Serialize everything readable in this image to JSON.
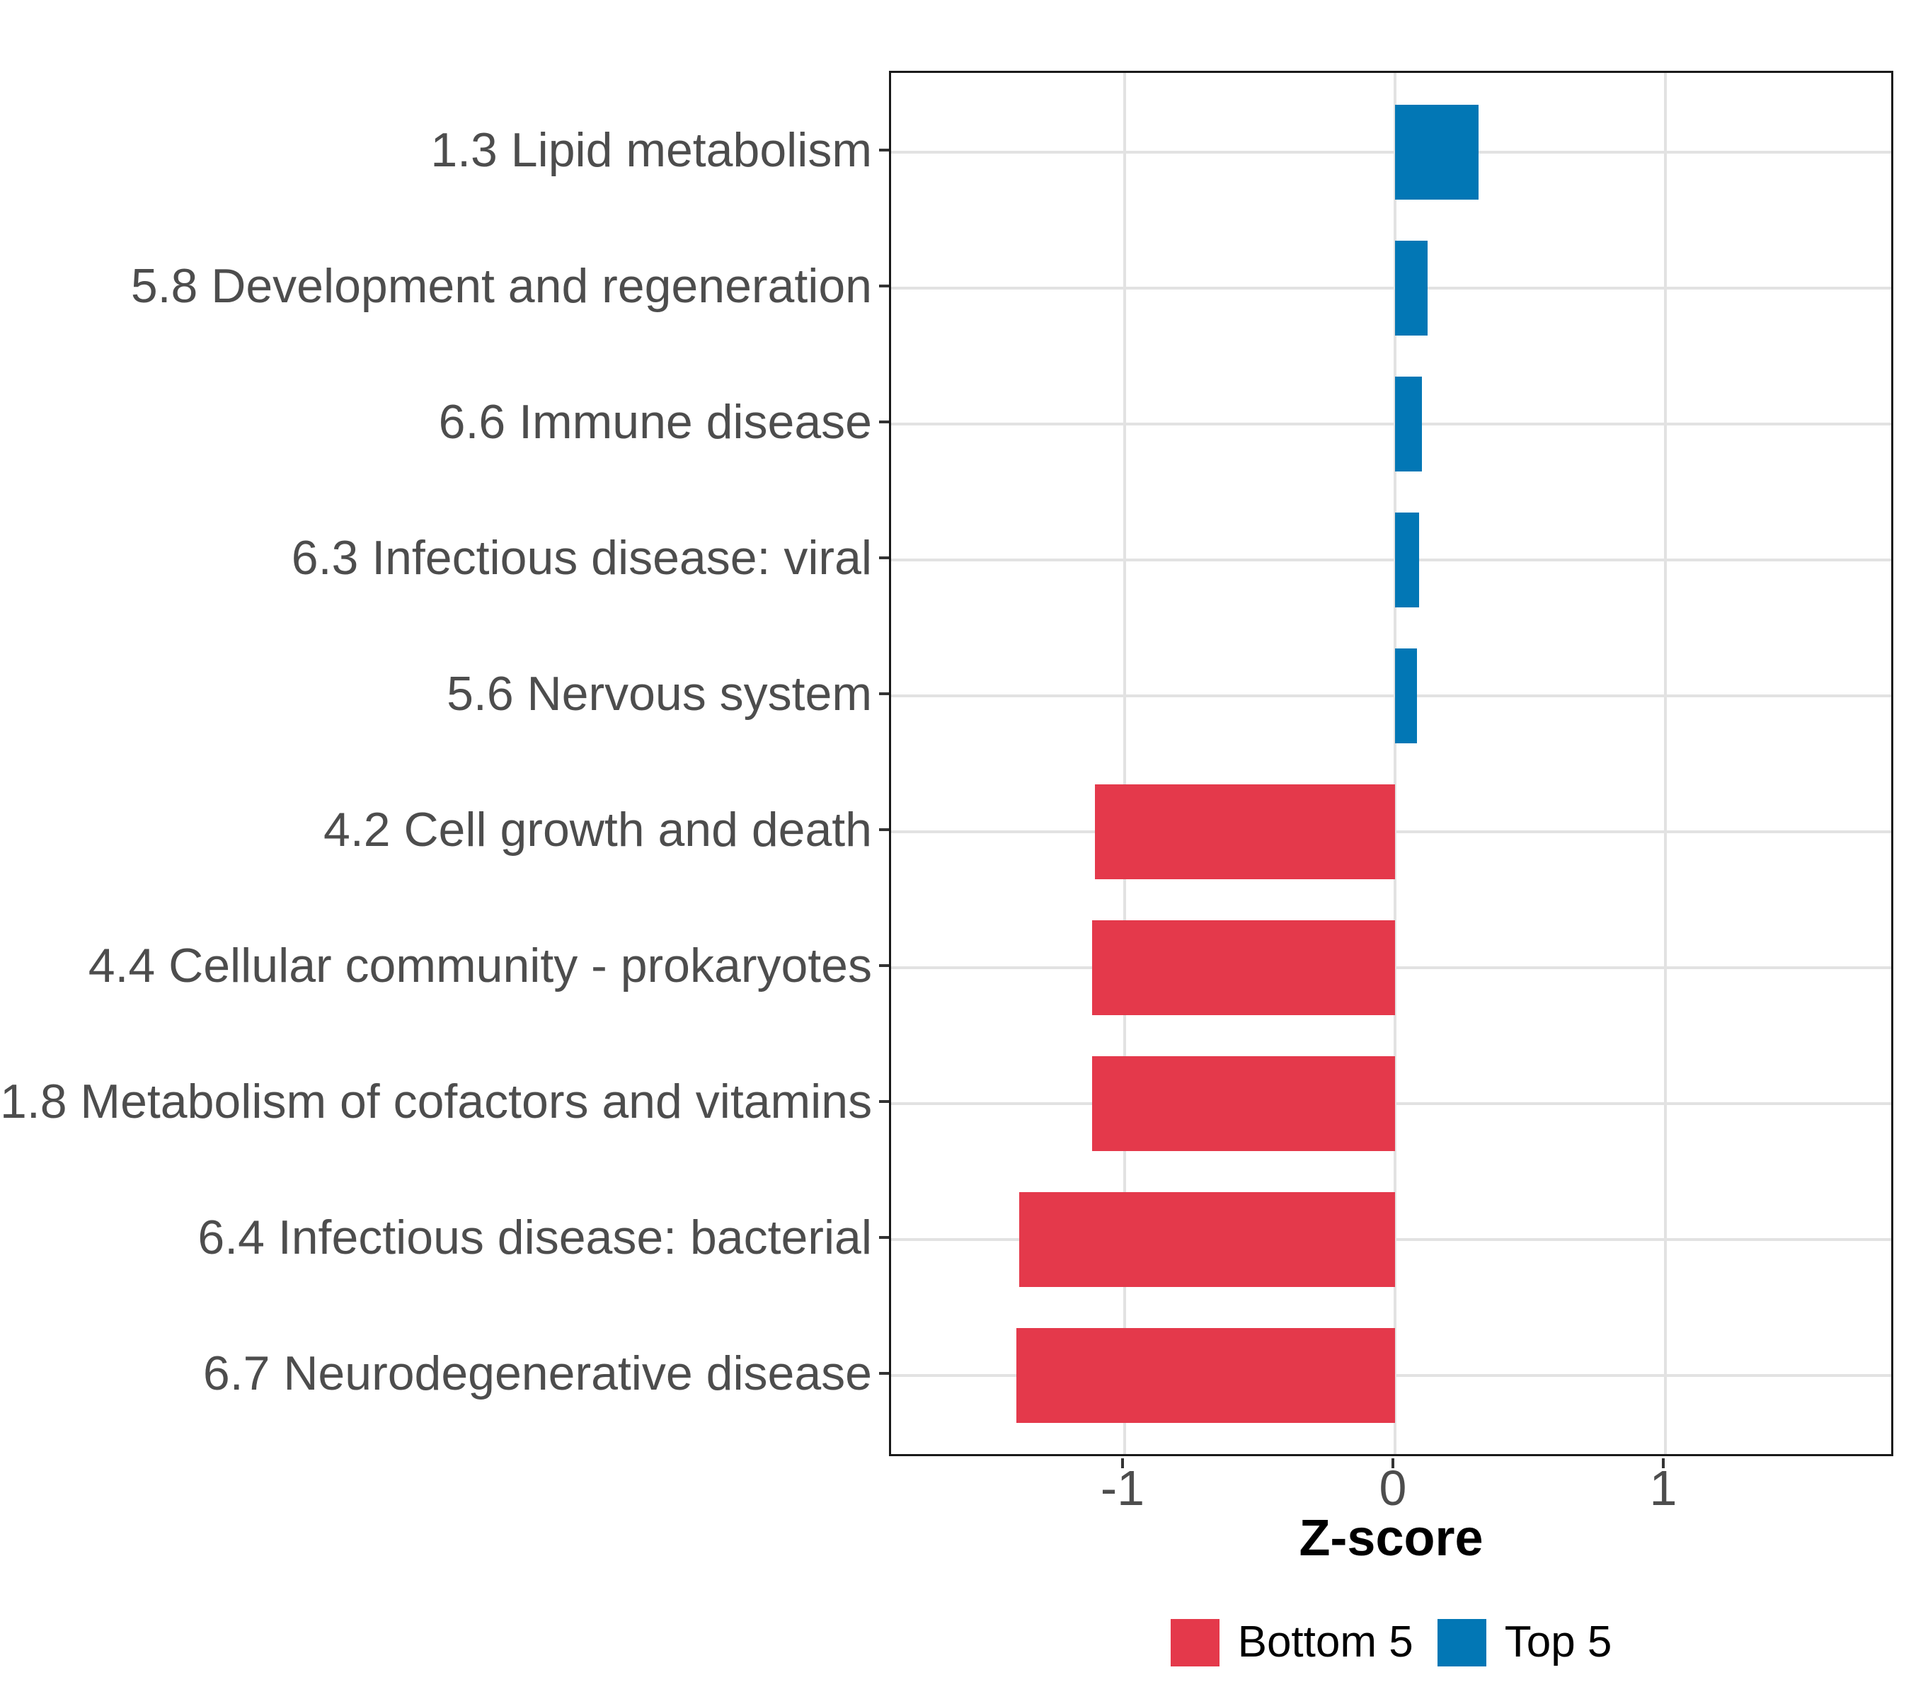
{
  "chart_data": {
    "type": "bar",
    "orientation": "horizontal",
    "title": "",
    "xlabel": "Z-score",
    "ylabel": "",
    "xlim": [
      -1.87,
      1.86
    ],
    "x_ticks": [
      -1,
      0,
      1
    ],
    "x_tick_labels": [
      "-1",
      "0",
      "1"
    ],
    "grid": "major-only",
    "legend_position": "bottom",
    "categories": [
      "1.3 Lipid metabolism",
      "5.8 Development and regeneration",
      "6.6 Immune disease",
      "6.3 Infectious disease: viral",
      "5.6 Nervous system",
      "4.2 Cell growth and death",
      "4.4 Cellular community - prokaryotes",
      "1.8 Metabolism of cofactors and vitamins",
      "6.4 Infectious disease: bacterial",
      "6.7 Neurodegenerative disease"
    ],
    "values": [
      0.31,
      0.12,
      0.1,
      0.09,
      0.08,
      -1.11,
      -1.12,
      -1.12,
      -1.39,
      -1.4
    ],
    "groups": [
      "Top 5",
      "Top 5",
      "Top 5",
      "Top 5",
      "Top 5",
      "Bottom 5",
      "Bottom 5",
      "Bottom 5",
      "Bottom 5",
      "Bottom 5"
    ],
    "series": [
      {
        "name": "Bottom 5",
        "color": "#E4394B",
        "values": [
          -1.11,
          -1.12,
          -1.12,
          -1.39,
          -1.4
        ]
      },
      {
        "name": "Top 5",
        "color": "#0277B5",
        "values": [
          0.31,
          0.12,
          0.1,
          0.09,
          0.08
        ]
      }
    ]
  },
  "legend": {
    "entries": [
      {
        "label": "Bottom 5",
        "color": "#E4394B"
      },
      {
        "label": "Top 5",
        "color": "#0277B5"
      }
    ]
  },
  "colors": {
    "bar_red": "#E4394B",
    "bar_blue": "#0277B5",
    "grid": "#E2E2E2",
    "panel_border": "#1A1A1A",
    "axis_text": "#4D4D4D",
    "tick_mark": "#333333",
    "axis_title_text": "#000000",
    "background": "#FFFFFF"
  }
}
